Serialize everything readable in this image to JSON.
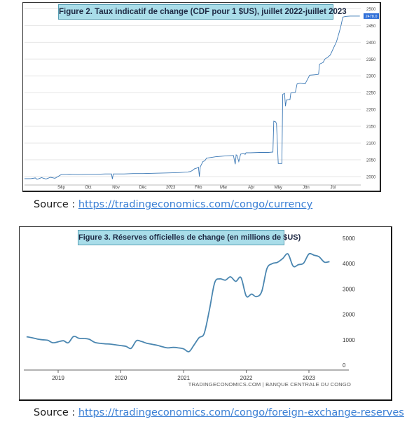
{
  "sources": [
    {
      "label": "Source : ",
      "url": "https://tradingeconomics.com/congo/currency"
    },
    {
      "label": "Source : ",
      "url": "https://tradingeconomics.com/congo/foreign-exchange-reserves"
    }
  ],
  "chart_data": [
    {
      "type": "line",
      "title": "Figure 2. Taux indicatif de change (CDF pour 1 $US), juillet 2022-juillet 2023",
      "xlabel": "",
      "ylabel": "",
      "x_tick_labels": [
        "Sep",
        "Oct",
        "Nov",
        "Dec",
        "2023",
        "Feb",
        "Mar",
        "Apr",
        "May",
        "Jun",
        "Jul"
      ],
      "x_tick_dates": [
        "2022-09-01",
        "2022-10-01",
        "2022-11-01",
        "2022-12-01",
        "2023-01-01",
        "2023-02-01",
        "2023-03-01",
        "2023-04-01",
        "2023-05-01",
        "2023-06-01",
        "2023-07-01"
      ],
      "xlim": [
        "2022-07-22",
        "2023-08-01"
      ],
      "ylim": [
        1975,
        2505
      ],
      "y_ticks": [
        2000,
        2050,
        2100,
        2150,
        2200,
        2250,
        2300,
        2350,
        2400,
        2450,
        2500
      ],
      "last_value_label": "2478.0",
      "grid": "horizontal",
      "line_color": "#3b78b5",
      "series": [
        {
          "x": [
            "2022-07-22",
            "2022-07-29",
            "2022-08-03",
            "2022-08-05",
            "2022-08-10",
            "2022-08-15",
            "2022-08-20",
            "2022-08-25",
            "2022-09-01",
            "2022-09-10",
            "2022-09-20",
            "2022-09-30",
            "2022-10-10",
            "2022-10-20",
            "2022-10-27",
            "2022-10-28",
            "2022-10-29",
            "2022-11-10",
            "2022-11-20",
            "2022-12-01",
            "2022-12-15",
            "2022-12-31",
            "2023-01-10",
            "2023-01-15",
            "2023-01-20",
            "2023-01-23",
            "2023-01-25",
            "2023-01-27",
            "2023-01-28",
            "2023-01-30",
            "2023-02-01",
            "2023-02-02",
            "2023-02-03",
            "2023-02-06",
            "2023-02-08",
            "2023-02-10",
            "2023-02-15",
            "2023-02-20",
            "2023-02-28",
            "2023-03-05",
            "2023-03-12",
            "2023-03-14",
            "2023-03-15",
            "2023-03-16",
            "2023-03-18",
            "2023-03-20",
            "2023-03-22",
            "2023-03-24",
            "2023-03-25",
            "2023-03-26",
            "2023-03-31",
            "2023-04-10",
            "2023-04-20",
            "2023-04-25",
            "2023-04-26",
            "2023-04-28",
            "2023-04-29",
            "2023-05-01",
            "2023-05-05",
            "2023-05-06",
            "2023-05-08",
            "2023-05-09",
            "2023-05-10",
            "2023-05-14",
            "2023-05-15",
            "2023-05-20",
            "2023-05-22",
            "2023-05-25",
            "2023-05-31",
            "2023-06-05",
            "2023-06-10",
            "2023-06-14",
            "2023-06-15",
            "2023-06-16",
            "2023-06-20",
            "2023-06-22",
            "2023-06-25",
            "2023-06-28",
            "2023-07-02",
            "2023-07-05",
            "2023-07-08",
            "2023-07-10",
            "2023-07-12",
            "2023-07-15",
            "2023-07-20",
            "2023-07-25",
            "2023-07-31"
          ],
          "values": [
            1994,
            1994,
            1996,
            1992,
            1997,
            1993,
            1998,
            1995,
            2006,
            2007,
            2006,
            2007,
            2007,
            2008,
            2008,
            1993,
            2008,
            2008,
            2009,
            2009,
            2010,
            2011,
            2012,
            2013,
            2014,
            2015,
            2018,
            2022,
            2024,
            2025,
            2028,
            2000,
            2029,
            2045,
            2047,
            2055,
            2057,
            2059,
            2061,
            2062,
            2063,
            2037,
            2065,
            2063,
            2045,
            2067,
            2068,
            2069,
            2066,
            2071,
            2071,
            2072,
            2072,
            2073,
            2165,
            2163,
            2158,
            2039,
            2039,
            2245,
            2248,
            2210,
            2228,
            2229,
            2249,
            2251,
            2276,
            2278,
            2276,
            2302,
            2303,
            2304,
            2305,
            2335,
            2340,
            2350,
            2355,
            2362,
            2385,
            2402,
            2430,
            2450,
            2475,
            2477,
            2478,
            2478,
            2478
          ]
        }
      ]
    },
    {
      "type": "line",
      "title": "Figure 3. Réserves officielles de change (en millions de $US)",
      "xlabel": "",
      "ylabel": "",
      "x_tick_labels": [
        "2019",
        "2020",
        "2021",
        "2022",
        "2023"
      ],
      "x_tick_dates": [
        "2019-01-01",
        "2020-01-01",
        "2021-01-01",
        "2022-01-01",
        "2023-01-01"
      ],
      "xlim": [
        "2018-06-15",
        "2023-06-01"
      ],
      "ylim": [
        0,
        5000
      ],
      "y_ticks": [
        0,
        1000,
        2000,
        3000,
        4000,
        5000
      ],
      "grid": "none",
      "line_color": "#4a86b0",
      "credit": "TRADINGECONOMICS.COM | BANQUE CENTRALE DU CONGO",
      "series": [
        {
          "x": [
            "2018-07-01",
            "2018-08-01",
            "2018-09-01",
            "2018-10-01",
            "2018-11-01",
            "2018-12-01",
            "2019-01-01",
            "2019-02-01",
            "2019-03-01",
            "2019-04-01",
            "2019-05-01",
            "2019-06-01",
            "2019-07-01",
            "2019-08-01",
            "2019-09-01",
            "2019-10-01",
            "2019-11-01",
            "2019-12-01",
            "2020-01-01",
            "2020-02-01",
            "2020-03-01",
            "2020-04-01",
            "2020-05-01",
            "2020-06-01",
            "2020-07-01",
            "2020-08-01",
            "2020-09-01",
            "2020-10-01",
            "2020-11-01",
            "2020-12-01",
            "2021-01-01",
            "2021-02-01",
            "2021-03-01",
            "2021-04-01",
            "2021-05-01",
            "2021-06-01",
            "2021-07-01",
            "2021-08-01",
            "2021-09-01",
            "2021-10-01",
            "2021-11-01",
            "2021-12-01",
            "2022-01-01",
            "2022-02-01",
            "2022-03-01",
            "2022-04-01",
            "2022-05-01",
            "2022-06-01",
            "2022-07-01",
            "2022-08-01",
            "2022-09-01",
            "2022-10-01",
            "2022-11-01",
            "2022-12-01",
            "2023-01-01",
            "2023-02-01",
            "2023-03-01",
            "2023-04-01",
            "2023-05-01"
          ],
          "values": [
            1120,
            1080,
            1030,
            1000,
            980,
            880,
            920,
            960,
            880,
            1130,
            1060,
            1050,
            1020,
            900,
            860,
            840,
            830,
            800,
            770,
            740,
            660,
            960,
            930,
            860,
            820,
            780,
            720,
            680,
            700,
            680,
            640,
            530,
            780,
            1080,
            1250,
            2200,
            3250,
            3400,
            3350,
            3480,
            3300,
            3450,
            2720,
            2800,
            2700,
            2900,
            3800,
            4000,
            4050,
            4200,
            4380,
            3900,
            3960,
            4020,
            4380,
            4330,
            4270,
            4060,
            4080
          ]
        }
      ]
    }
  ]
}
